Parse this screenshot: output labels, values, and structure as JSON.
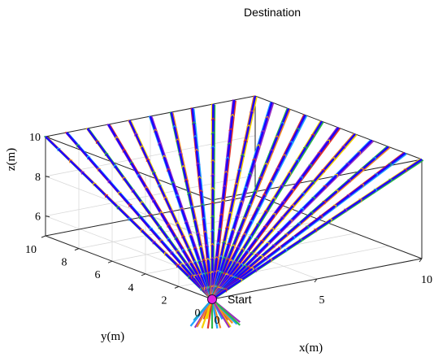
{
  "chart_data": {
    "type": "line",
    "title": "",
    "xlabel": "x(m)",
    "ylabel": "y(m)",
    "zlabel": "z(m)",
    "xlim": [
      0,
      10
    ],
    "ylim": [
      0,
      10
    ],
    "zlim": [
      5,
      10
    ],
    "x_ticks": [
      "0",
      "5",
      "10"
    ],
    "y_ticks": [
      "0",
      "2",
      "4",
      "6",
      "8",
      "10"
    ],
    "z_ticks": [
      "6",
      "8",
      "10"
    ],
    "grid": true,
    "annotations": [
      "Start",
      "Destination"
    ],
    "start_point": {
      "x": 0,
      "y": 0,
      "z": 5
    },
    "series": [
      {
        "color": "#1f00ff",
        "x": [
          0,
          0
        ],
        "y": [
          0,
          10
        ],
        "z": [
          5,
          10
        ]
      },
      {
        "color": "#1f00ff",
        "x": [
          0,
          1
        ],
        "y": [
          0,
          10
        ],
        "z": [
          5,
          10
        ]
      },
      {
        "color": "#1f00ff",
        "x": [
          0,
          2
        ],
        "y": [
          0,
          10
        ],
        "z": [
          5,
          10
        ]
      },
      {
        "color": "#1f00ff",
        "x": [
          0,
          3
        ],
        "y": [
          0,
          10
        ],
        "z": [
          5,
          10
        ]
      },
      {
        "color": "#1f00ff",
        "x": [
          0,
          4
        ],
        "y": [
          0,
          10
        ],
        "z": [
          5,
          10
        ]
      },
      {
        "color": "#1f00ff",
        "x": [
          0,
          5
        ],
        "y": [
          0,
          10
        ],
        "z": [
          5,
          10
        ]
      },
      {
        "color": "#1f00ff",
        "x": [
          0,
          6
        ],
        "y": [
          0,
          10
        ],
        "z": [
          5,
          10
        ]
      },
      {
        "color": "#1f00ff",
        "x": [
          0,
          7
        ],
        "y": [
          0,
          10
        ],
        "z": [
          5,
          10
        ]
      },
      {
        "color": "#1f00ff",
        "x": [
          0,
          8
        ],
        "y": [
          0,
          10
        ],
        "z": [
          5,
          10
        ]
      },
      {
        "color": "#1f00ff",
        "x": [
          0,
          9
        ],
        "y": [
          0,
          10
        ],
        "z": [
          5,
          10
        ]
      },
      {
        "color": "#1f00ff",
        "x": [
          0,
          10
        ],
        "y": [
          0,
          10
        ],
        "z": [
          5,
          10
        ]
      },
      {
        "color": "#1f00ff",
        "x": [
          0,
          10
        ],
        "y": [
          0,
          9
        ],
        "z": [
          5,
          10
        ]
      },
      {
        "color": "#1f00ff",
        "x": [
          0,
          10
        ],
        "y": [
          0,
          8
        ],
        "z": [
          5,
          10
        ]
      },
      {
        "color": "#1f00ff",
        "x": [
          0,
          10
        ],
        "y": [
          0,
          7
        ],
        "z": [
          5,
          10
        ]
      },
      {
        "color": "#1f00ff",
        "x": [
          0,
          10
        ],
        "y": [
          0,
          6
        ],
        "z": [
          5,
          10
        ]
      },
      {
        "color": "#1f00ff",
        "x": [
          0,
          10
        ],
        "y": [
          0,
          5
        ],
        "z": [
          5,
          10
        ]
      },
      {
        "color": "#1f00ff",
        "x": [
          0,
          10
        ],
        "y": [
          0,
          4
        ],
        "z": [
          5,
          10
        ]
      },
      {
        "color": "#1f00ff",
        "x": [
          0,
          10
        ],
        "y": [
          0,
          3
        ],
        "z": [
          5,
          10
        ]
      },
      {
        "color": "#1f00ff",
        "x": [
          0,
          10
        ],
        "y": [
          0,
          2
        ],
        "z": [
          5,
          10
        ]
      },
      {
        "color": "#1f00ff",
        "x": [
          0,
          10
        ],
        "y": [
          0,
          1
        ],
        "z": [
          5,
          10
        ]
      },
      {
        "color": "#1f00ff",
        "x": [
          0,
          10
        ],
        "y": [
          0,
          0
        ],
        "z": [
          5,
          10
        ]
      }
    ],
    "accent_colors": [
      "#f08a24",
      "#1fa2ff",
      "#2db84a",
      "#e0352b",
      "#f5d000",
      "#9b2fbf"
    ],
    "marker_color": "#e020e0"
  }
}
